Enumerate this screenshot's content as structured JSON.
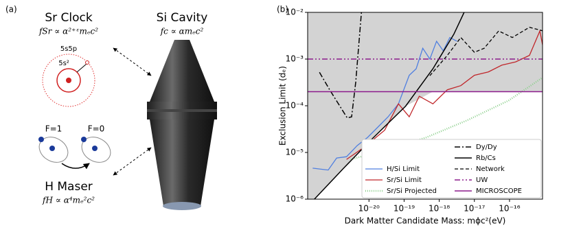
{
  "panel_a": {
    "label": "(a)",
    "sr_clock": {
      "title": "Sr Clock",
      "formula": "fSr ∝ α²⁺ᵋmₑc²",
      "orbit_outer": "5s5p",
      "orbit_inner": "5s²"
    },
    "si_cavity": {
      "title": "Si Cavity",
      "formula": "fc ∝ αmₑc²"
    },
    "h_maser": {
      "title": "H Maser",
      "formula": "fH ∝ α⁴mₑ²c²",
      "state_left": "F=1",
      "state_right": "F=0"
    }
  },
  "chart_data": {
    "type": "line",
    "panel_label": "(b)",
    "x_label": "Dark Matter Candidate Mass: mϕc²(eV)",
    "y_label": "Exclusion Limit (dₑ)",
    "xscale": "log",
    "yscale": "log",
    "excluded_fill": "#d3d3d3",
    "legend": "lower right",
    "xlim": [
      1.8e-22,
      8.7e-16
    ],
    "ylim": [
      1e-06,
      0.01
    ],
    "xticks": [
      {
        "value": 1e-20,
        "label": "10⁻²⁰"
      },
      {
        "value": 1e-19,
        "label": "10⁻¹⁹"
      },
      {
        "value": 1e-18,
        "label": "10⁻¹⁸"
      },
      {
        "value": 1e-17,
        "label": "10⁻¹⁷"
      },
      {
        "value": 1e-16,
        "label": "10⁻¹⁶"
      }
    ],
    "yticks": [
      {
        "value": 1e-06,
        "label": "10⁻⁶"
      },
      {
        "value": 1e-05,
        "label": "10⁻⁵"
      },
      {
        "value": 0.0001,
        "label": "10⁻⁴"
      },
      {
        "value": 0.001,
        "label": "10⁻³"
      },
      {
        "value": 0.01,
        "label": "10⁻²"
      }
    ],
    "series": [
      {
        "name": "H/Si Limit",
        "color": "#4f7fe0",
        "dash": "none",
        "width": 1.3,
        "x": [
          2.5e-22,
          6.9e-22,
          1.2e-21,
          2.3e-21,
          4.6e-21,
          9.1e-21,
          1.8e-20,
          3.5e-20,
          6.9e-20,
          1.4e-19,
          2.2e-19,
          3.4e-19,
          5.4e-19,
          8.4e-19,
          1.3e-18,
          2e-18,
          3.2e-18
        ],
        "values": [
          4.6e-06,
          4.2e-06,
          7.6e-06,
          8.1e-06,
          1.4e-05,
          2.1e-05,
          3.5e-05,
          5.8e-05,
          0.00011,
          0.00045,
          0.00062,
          0.0017,
          0.001,
          0.0024,
          0.0015,
          0.0029,
          0.0024
        ]
      },
      {
        "name": "Sr/Si Limit",
        "color": "#c0262a",
        "dash": "none",
        "width": 1.3,
        "x": [
          2.3e-21,
          7.3e-21,
          2.8e-20,
          6.9e-20,
          1.4e-19,
          2.7e-19,
          6.6e-19,
          1.7e-18,
          4.1e-18,
          1e-17,
          2.5e-17,
          6e-17,
          1.5e-16,
          3.7e-16,
          7.3e-16,
          9.1e-16
        ],
        "values": [
          7.1e-06,
          1.3e-05,
          3e-05,
          0.00011,
          5.8e-05,
          0.00016,
          0.00011,
          0.00022,
          0.00027,
          0.00045,
          0.00053,
          0.00074,
          0.00087,
          0.0012,
          0.004,
          0.0017
        ]
      },
      {
        "name": "Sr/Si Projected",
        "color": "#8ccf8c",
        "dash": "1 2",
        "width": 2.5,
        "x": [
          3e-21,
          2.8e-20,
          4.3e-19,
          6.3e-18,
          9.5e-17,
          9.1e-16
        ],
        "values": [
          7.1e-06,
          1.1e-05,
          2.1e-05,
          4.9e-05,
          0.00013,
          0.00041
        ]
      },
      {
        "name": "Dy/Dy",
        "color": "#000000",
        "dash": "8 3 2 3",
        "width": 1.5,
        "x": [
          3.9e-22,
          7.6e-22,
          1.5e-21,
          2.4e-21,
          3.2e-21,
          4.2e-21,
          6.1e-21
        ],
        "values": [
          0.00052,
          0.00022,
          9.7e-05,
          5.5e-05,
          5.8e-05,
          0.00032,
          0.01
        ]
      },
      {
        "name": "Rb/Cs",
        "color": "#000000",
        "dash": "none",
        "width": 1.5,
        "x": [
          2.8e-22,
          1.9e-21,
          1.1e-20,
          1.1e-19,
          6.6e-19,
          2.6e-18,
          5.1e-18
        ],
        "values": [
          1e-06,
          4.6e-06,
          1.8e-05,
          9.8e-05,
          0.00062,
          0.0034,
          0.01
        ]
      },
      {
        "name": "Network",
        "color": "#000000",
        "dash": "5 3",
        "width": 1.3,
        "x": [
          5.4e-19,
          1.7e-18,
          4.1e-18,
          1e-17,
          1.9e-17,
          4.9e-17,
          1.2e-16,
          3.7e-16,
          9.1e-16
        ],
        "values": [
          0.00044,
          0.0012,
          0.0029,
          0.0014,
          0.0017,
          0.004,
          0.0029,
          0.0048,
          0.004
        ]
      },
      {
        "name": "UW",
        "color": "#8b1a8b",
        "dash": "8 3 2 3 2 3",
        "width": 1.5,
        "x": [
          1.8e-22,
          8.7e-16
        ],
        "values": [
          0.001,
          0.001
        ]
      },
      {
        "name": "MICROSCOPE",
        "color": "#8b1a8b",
        "dash": "none",
        "width": 1.5,
        "x": [
          1.8e-22,
          8.7e-16
        ],
        "values": [
          0.0002,
          0.0002
        ]
      }
    ]
  }
}
